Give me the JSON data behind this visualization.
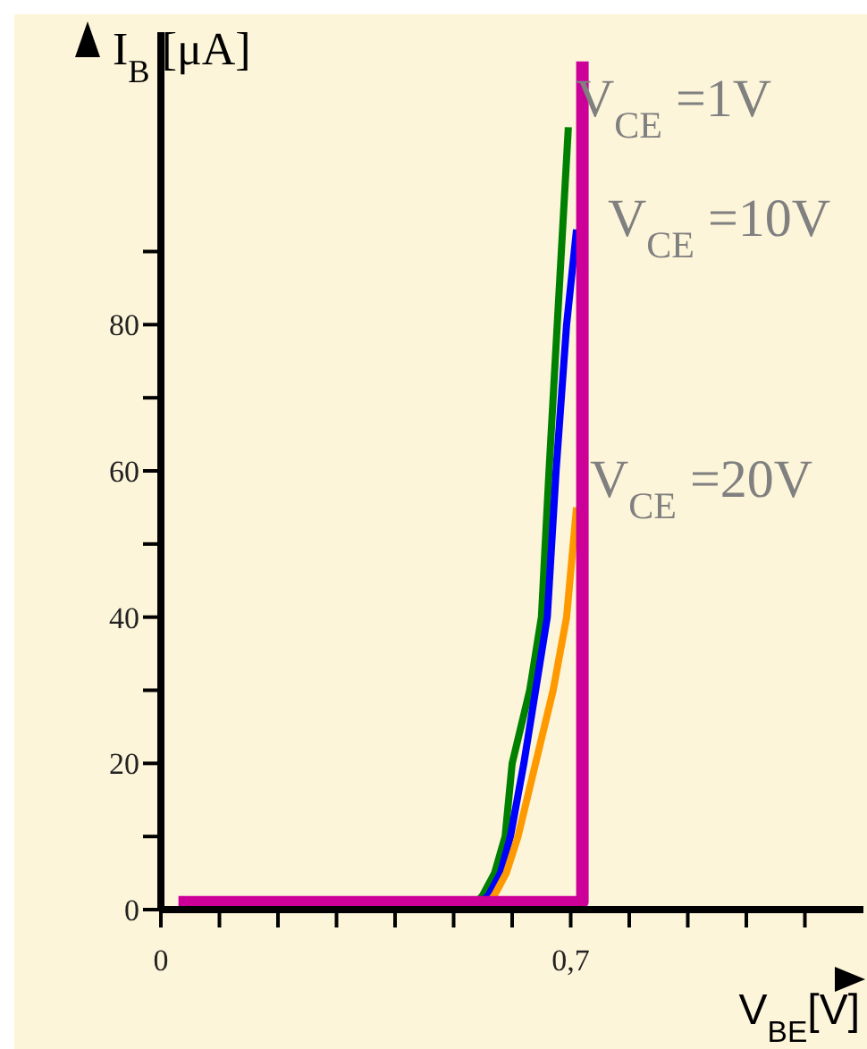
{
  "chart_data": {
    "type": "line",
    "xlabel": "V$_{BE}$[V]",
    "ylabel": "I$_{B}$ [μA]",
    "xlim": [
      0,
      1.2
    ],
    "ylim": [
      0,
      120
    ],
    "xticks": [
      0,
      {
        "value": 0.1,
        "label": null
      },
      {
        "value": 0.2,
        "label": null
      },
      {
        "value": 0.3,
        "label": null
      },
      {
        "value": 0.4,
        "label": null
      },
      {
        "value": 0.5,
        "label": null
      },
      {
        "value": 0.6,
        "label": null
      },
      {
        "value": 0.7,
        "label": "0,7"
      },
      {
        "value": 0.8,
        "label": null
      },
      {
        "value": 0.9,
        "label": null
      },
      {
        "value": 1.0,
        "label": null
      },
      {
        "value": 1.1,
        "label": null
      }
    ],
    "yticks": [
      0,
      {
        "value": 10,
        "label": null
      },
      20,
      {
        "value": 30,
        "label": null
      },
      40,
      {
        "value": 50,
        "label": null
      },
      60,
      {
        "value": 70,
        "label": null
      },
      80,
      {
        "value": 90,
        "label": null
      }
    ],
    "grid": false,
    "legend": false,
    "marker": "none",
    "line_style": "solid",
    "series": [
      {
        "color": "#008000",
        "x": [
          0.53,
          0.55,
          0.57,
          0.588,
          0.6,
          0.63,
          0.65,
          0.663,
          0.677,
          0.696
        ],
        "values": [
          0,
          2,
          5,
          10,
          20,
          30,
          40,
          60,
          80,
          107
        ]
      },
      {
        "color": "#0000ff",
        "x": [
          0.535,
          0.56,
          0.58,
          0.597,
          0.62,
          0.64,
          0.66,
          0.675,
          0.693,
          0.71
        ],
        "values": [
          0,
          2,
          5,
          10,
          20,
          30,
          40,
          60,
          80,
          93
        ]
      },
      {
        "color": "#ff9900",
        "x": [
          0.55,
          0.57,
          0.59,
          0.61,
          0.64,
          0.67,
          0.693,
          0.71
        ],
        "values": [
          0,
          2,
          5,
          10,
          20,
          30,
          40,
          55
        ]
      },
      {
        "color": "#cc0099",
        "x": [
          0.03,
          0.72,
          0.72
        ],
        "values": [
          1,
          1,
          116
        ]
      }
    ],
    "annotations": [
      "V$_{CE}$ =1V",
      "V$_{CE}$ =10V",
      "V$_{CE}$ =20V"
    ]
  }
}
